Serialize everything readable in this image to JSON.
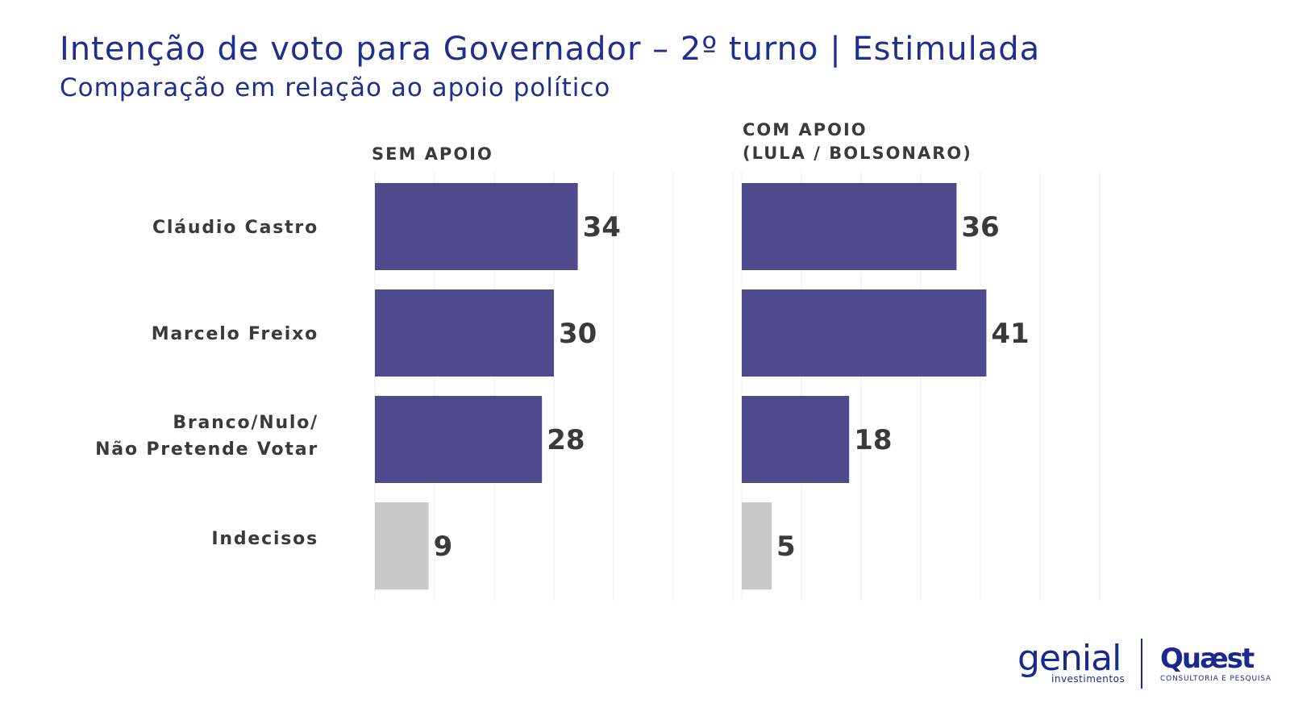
{
  "header": {
    "title": "Intenção de voto para Governador – 2º turno | Estimulada",
    "subtitle": "Comparação em relação ao apoio político"
  },
  "panels": {
    "left_title": [
      "SEM APOIO"
    ],
    "right_title": [
      "COM APOIO",
      "(LULA / BOLSONARO)"
    ]
  },
  "categories": [
    [
      "Cláudio Castro"
    ],
    [
      "Marcelo Freixo"
    ],
    [
      "Branco/Nulo/",
      "Não Pretende Votar"
    ],
    [
      "Indecisos"
    ]
  ],
  "chart_data": [
    {
      "type": "bar",
      "orientation": "horizontal",
      "title": "SEM APOIO",
      "categories": [
        "Cláudio Castro",
        "Marcelo Freixo",
        "Branco/Nulo/ Não Pretende Votar",
        "Indecisos"
      ],
      "values": [
        34,
        30,
        28,
        9
      ],
      "bar_colors": [
        "#4f4a8b",
        "#4f4a8b",
        "#4f4a8b",
        "#c8c8c8"
      ],
      "xlim": [
        0,
        60
      ],
      "grid": true
    },
    {
      "type": "bar",
      "orientation": "horizontal",
      "title": "COM APOIO (LULA / BOLSONARO)",
      "categories": [
        "Cláudio Castro",
        "Marcelo Freixo",
        "Branco/Nulo/ Não Pretende Votar",
        "Indecisos"
      ],
      "values": [
        36,
        41,
        18,
        5
      ],
      "bar_colors": [
        "#4f4a8b",
        "#4f4a8b",
        "#4f4a8b",
        "#c8c8c8"
      ],
      "xlim": [
        0,
        60
      ],
      "grid": true
    }
  ],
  "colors": {
    "title": "#1f2f8f",
    "bar": "#4f4a8b",
    "bar_muted": "#c8c8c8",
    "text": "#3a3a3a",
    "grid": "#ececec"
  },
  "logos": {
    "genial": "genial",
    "genial_sub": "investimentos",
    "quaest": "Quæst",
    "quaest_sub": "CONSULTORIA E PESQUISA"
  }
}
